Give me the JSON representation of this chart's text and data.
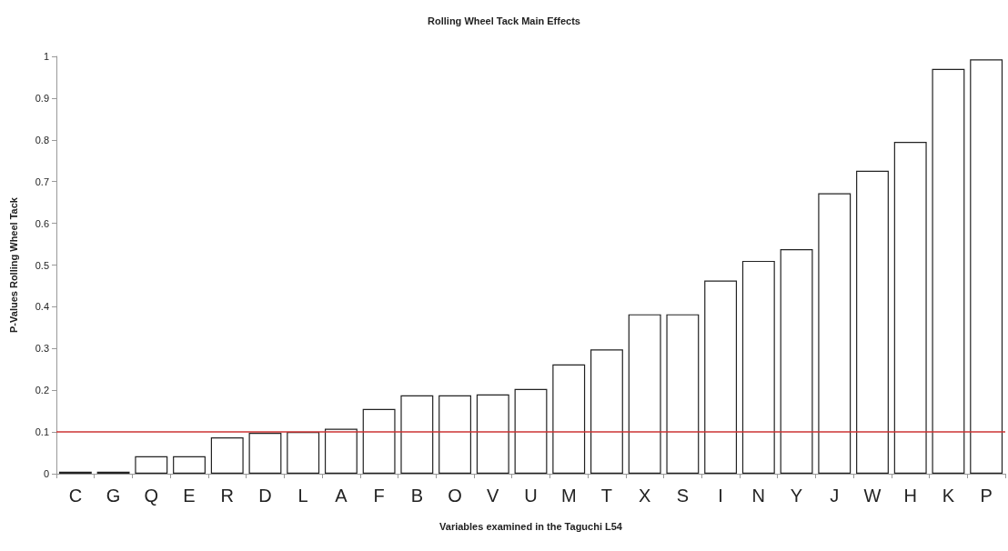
{
  "chart_data": {
    "type": "bar",
    "title": "Rolling Wheel Tack Main Effects",
    "xlabel": "Variables examined in the Taguchi L54",
    "ylabel": "P-Values Rolling Wheel Tack",
    "categories": [
      "C",
      "G",
      "Q",
      "E",
      "R",
      "D",
      "L",
      "A",
      "F",
      "B",
      "O",
      "V",
      "U",
      "M",
      "T",
      "X",
      "S",
      "I",
      "N",
      "Y",
      "J",
      "W",
      "H",
      "K",
      "P"
    ],
    "values": [
      0.005,
      0.005,
      0.042,
      0.042,
      0.087,
      0.098,
      0.1,
      0.108,
      0.155,
      0.188,
      0.188,
      0.19,
      0.203,
      0.262,
      0.298,
      0.382,
      0.382,
      0.463,
      0.51,
      0.538,
      0.672,
      0.726,
      0.795,
      0.97,
      0.993
    ],
    "color": "#ffffff",
    "ylim": [
      0,
      1
    ],
    "yticks": [
      0,
      0.1,
      0.2,
      0.3,
      0.4,
      0.5,
      0.6,
      0.7,
      0.8,
      0.9,
      1
    ],
    "ref_lines": [
      {
        "axis": "y",
        "value": 0.1,
        "color": "#cc3333"
      }
    ],
    "grid": false
  }
}
